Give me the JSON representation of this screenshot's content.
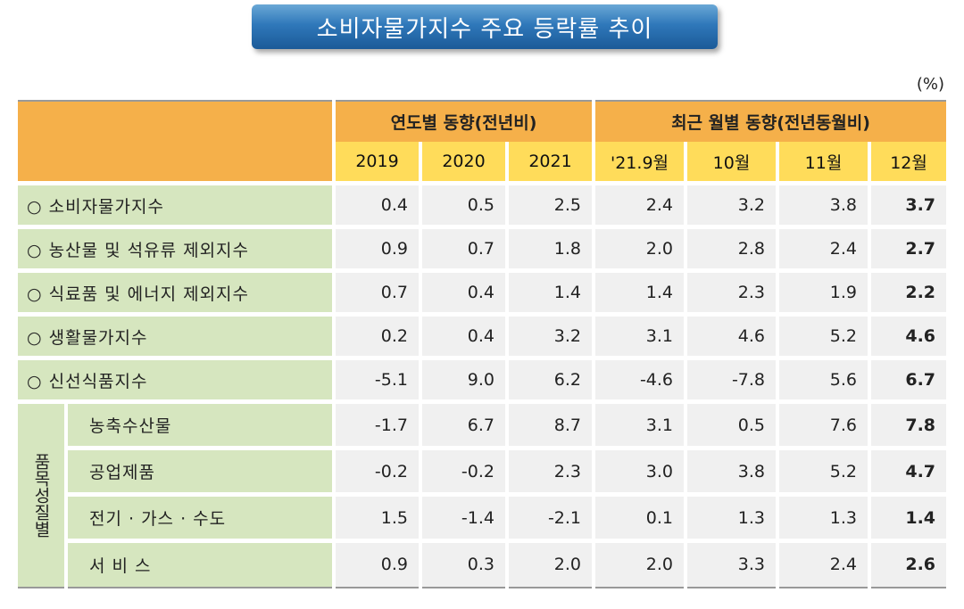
{
  "title": "소비자물가지수 주요 등락률 추이",
  "unit": "(%)",
  "header": {
    "group_yearly": "연도별 동향(전년비)",
    "group_monthly": "최근 월별 동향(전년동월비)",
    "columns": [
      "2019",
      "2020",
      "2021",
      "'21.9월",
      "10월",
      "11월",
      "12월"
    ]
  },
  "rows": [
    {
      "label": "○  소비자물가지수",
      "values": [
        "0.4",
        "0.5",
        "2.5",
        "2.4",
        "3.2",
        "3.8",
        "3.7"
      ]
    },
    {
      "label": "○  농산물 및 석유류 제외지수",
      "values": [
        "0.9",
        "0.7",
        "1.8",
        "2.0",
        "2.8",
        "2.4",
        "2.7"
      ]
    },
    {
      "label": "○  식료품 및 에너지 제외지수",
      "values": [
        "0.7",
        "0.4",
        "1.4",
        "1.4",
        "2.3",
        "1.9",
        "2.2"
      ]
    },
    {
      "label": "○  생활물가지수",
      "values": [
        "0.2",
        "0.4",
        "3.2",
        "3.1",
        "4.6",
        "5.2",
        "4.6"
      ]
    },
    {
      "label": "○  신선식품지수",
      "values": [
        "-5.1",
        "9.0",
        "6.2",
        "-4.6",
        "-7.8",
        "5.6",
        "6.7"
      ]
    }
  ],
  "group_label": "품목성질별",
  "group_rows": [
    {
      "label": "농축수산물",
      "values": [
        "-1.7",
        "6.7",
        "8.7",
        "3.1",
        "0.5",
        "7.6",
        "7.8"
      ]
    },
    {
      "label": "공업제품",
      "values": [
        "-0.2",
        "-0.2",
        "2.3",
        "3.0",
        "3.8",
        "5.2",
        "4.7"
      ]
    },
    {
      "label": "전기 · 가스 · 수도",
      "values": [
        "1.5",
        "-1.4",
        "-2.1",
        "0.1",
        "1.3",
        "1.3",
        "1.4"
      ]
    },
    {
      "label": "서 비 스",
      "values": [
        "0.9",
        "0.3",
        "2.0",
        "2.0",
        "3.3",
        "2.4",
        "2.6"
      ]
    }
  ]
}
